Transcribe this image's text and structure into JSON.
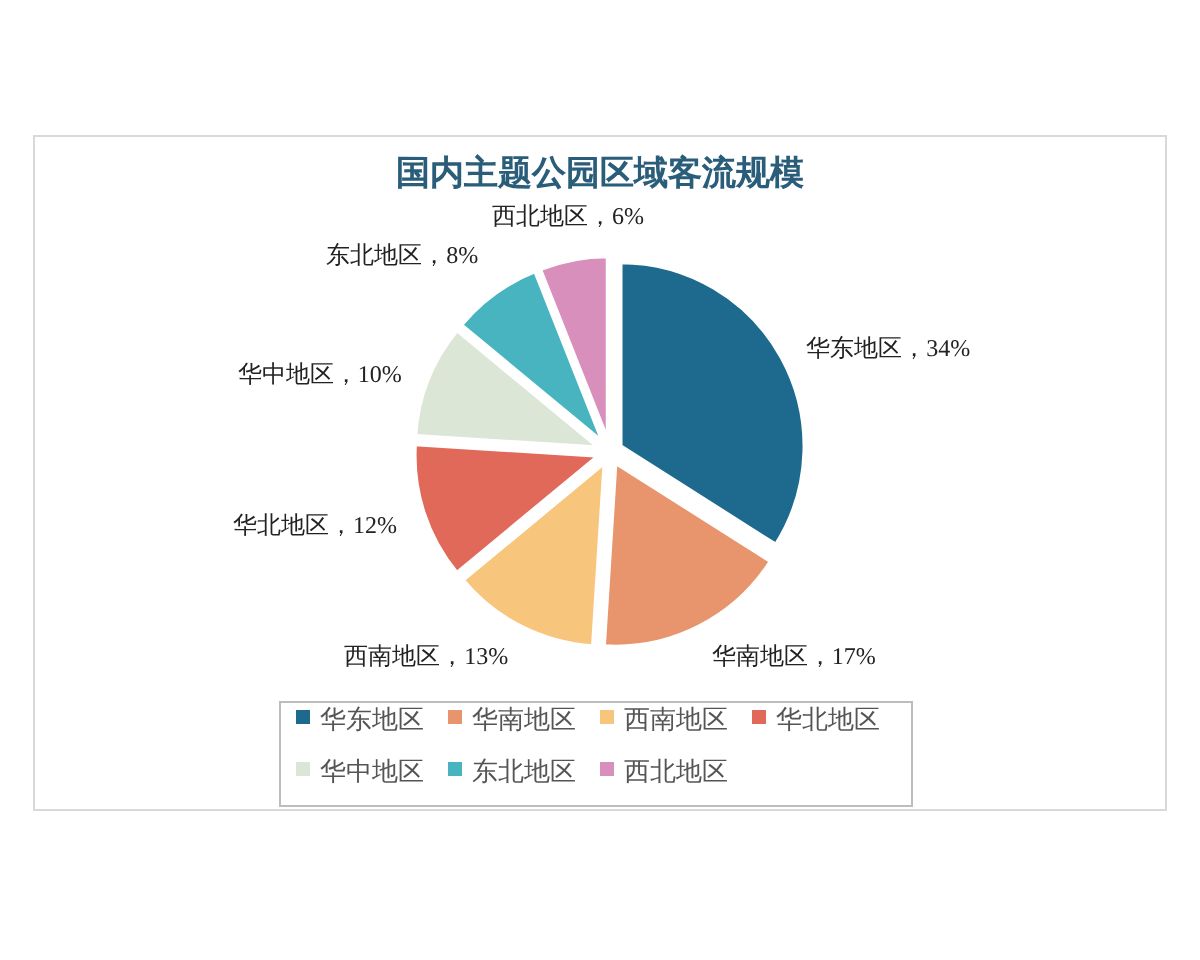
{
  "chart_data": {
    "type": "pie",
    "title": "国内主题公园区域客流规模",
    "categories": [
      "华东地区",
      "华南地区",
      "西南地区",
      "华北地区",
      "华中地区",
      "东北地区",
      "西北地区"
    ],
    "values": [
      34,
      17,
      13,
      12,
      10,
      8,
      6
    ],
    "colors": [
      "#1d6a8e",
      "#e8946c",
      "#f8c57c",
      "#e0695a",
      "#dbe6d6",
      "#48b4c0",
      "#d88fbb"
    ],
    "value_labels": [
      "华东地区，34%",
      "华南地区，17%",
      "西南地区，13%",
      "华北地区，12%",
      "华中地区，10%",
      "东北地区，8%",
      "西北地区，6%"
    ],
    "legend": "bottom"
  }
}
